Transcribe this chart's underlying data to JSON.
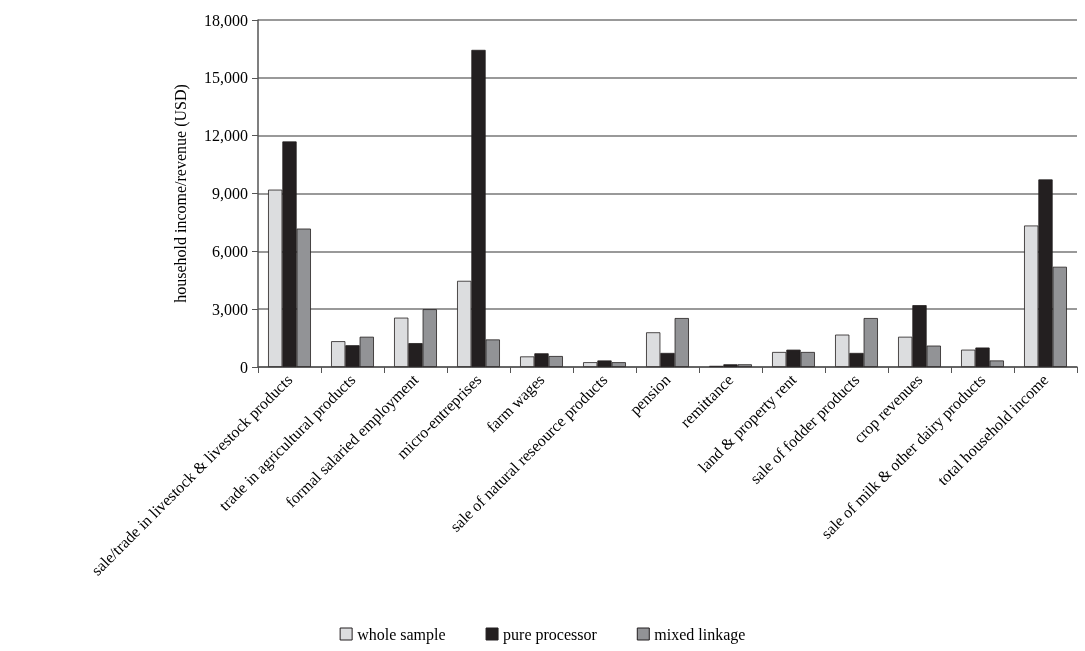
{
  "chart_data": {
    "type": "bar",
    "ylabel": "household income/revenue (USD)",
    "categories": [
      "sale/trade in livestock & livestock products",
      "trade in agricultural products",
      "formal salaried employment",
      "micro-entreprises",
      "farm wages",
      "sale of natural reseource products",
      "pension",
      "remittance",
      "land & property rent",
      "sale of fodder products",
      "crop revenues",
      "sale of milk & other dairy products",
      "total household income"
    ],
    "series": [
      {
        "name": "whole sample",
        "color": "#dcdddf",
        "values": [
          9200,
          1340,
          2560,
          4470,
          550,
          250,
          1800,
          60,
          780,
          1680,
          1570,
          900,
          7340
        ]
      },
      {
        "name": "pure processor",
        "color": "#231f20",
        "values": [
          11700,
          1130,
          1240,
          16450,
          710,
          340,
          730,
          140,
          900,
          730,
          3210,
          1010,
          9730
        ]
      },
      {
        "name": "mixed linkage",
        "color": "#929396",
        "values": [
          7180,
          1570,
          3000,
          1430,
          570,
          250,
          2540,
          140,
          780,
          2540,
          1110,
          340,
          5200
        ]
      }
    ],
    "ylim": [
      0,
      18000
    ],
    "yticks": [
      0,
      {
        "value": 3000,
        "label": "3,000"
      },
      {
        "value": 6000,
        "label": "6,000"
      },
      {
        "value": 9000,
        "label": "9,000"
      },
      {
        "value": 12000,
        "label": "12,000"
      },
      {
        "value": 15000,
        "label": "15,000"
      },
      {
        "value": 18000,
        "label": "18,000"
      }
    ],
    "grid": "y",
    "legend": "bottom"
  }
}
